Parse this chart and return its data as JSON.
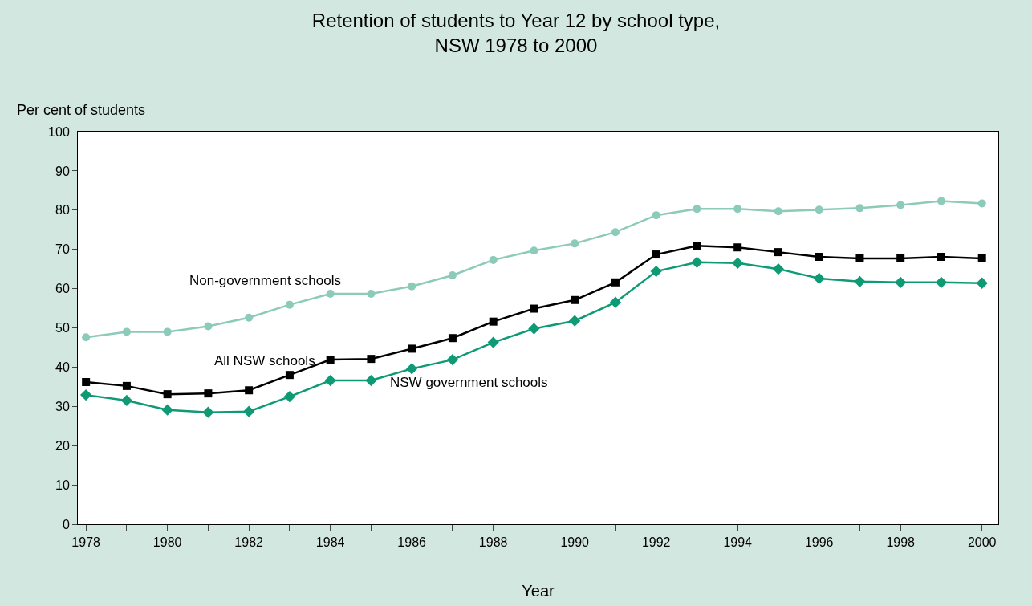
{
  "chart_data": {
    "type": "line",
    "title": "Retention of students to Year 12 by school type,\nNSW 1978 to 2000",
    "xlabel": "Year",
    "ylabel": "Per cent of students",
    "x": [
      1978,
      1979,
      1980,
      1981,
      1982,
      1983,
      1984,
      1985,
      1986,
      1987,
      1988,
      1989,
      1990,
      1991,
      1992,
      1993,
      1994,
      1995,
      1996,
      1997,
      1998,
      1999,
      2000
    ],
    "series": [
      {
        "name": "Non-government schools",
        "color": "#8ccab9",
        "marker": "circle",
        "values": [
          47.6,
          49.0,
          49.0,
          50.4,
          52.6,
          55.9,
          58.7,
          58.7,
          60.6,
          63.4,
          67.3,
          69.7,
          71.5,
          74.4,
          78.7,
          80.3,
          80.3,
          79.7,
          80.1,
          80.5,
          81.3,
          82.3,
          81.7
        ]
      },
      {
        "name": "All NSW schools",
        "color": "#000000",
        "marker": "square",
        "values": [
          36.2,
          35.2,
          33.1,
          33.3,
          34.1,
          38.0,
          41.9,
          42.1,
          44.7,
          47.4,
          51.6,
          54.9,
          57.1,
          61.6,
          68.7,
          70.9,
          70.5,
          69.3,
          68.1,
          67.7,
          67.7,
          68.1,
          67.7
        ]
      },
      {
        "name": "NSW government schools",
        "color": "#0f9a76",
        "marker": "diamond",
        "values": [
          32.9,
          31.5,
          29.1,
          28.5,
          28.7,
          32.5,
          36.6,
          36.6,
          39.6,
          41.9,
          46.3,
          49.8,
          51.8,
          56.5,
          64.4,
          66.7,
          66.5,
          65.0,
          62.6,
          61.8,
          61.6,
          61.6,
          61.4
        ]
      }
    ],
    "xlim": [
      1977.8,
      2000.4
    ],
    "xticks": [
      1978,
      {
        "value": 1979,
        "label": null
      },
      1980,
      {
        "value": 1981,
        "label": null
      },
      1982,
      {
        "value": 1983,
        "label": null
      },
      1984,
      {
        "value": 1985,
        "label": null
      },
      1986,
      {
        "value": 1987,
        "label": null
      },
      1988,
      {
        "value": 1989,
        "label": null
      },
      1990,
      {
        "value": 1991,
        "label": null
      },
      1992,
      {
        "value": 1993,
        "label": null
      },
      1994,
      {
        "value": 1995,
        "label": null
      },
      1996,
      {
        "value": 1997,
        "label": null
      },
      1998,
      {
        "value": 1999,
        "label": null
      },
      2000
    ],
    "ylim": [
      0,
      100
    ],
    "yticks": [
      0,
      10,
      20,
      30,
      40,
      50,
      60,
      70,
      80,
      90,
      100
    ],
    "grid": false,
    "legend": false,
    "line_style": "solid"
  }
}
